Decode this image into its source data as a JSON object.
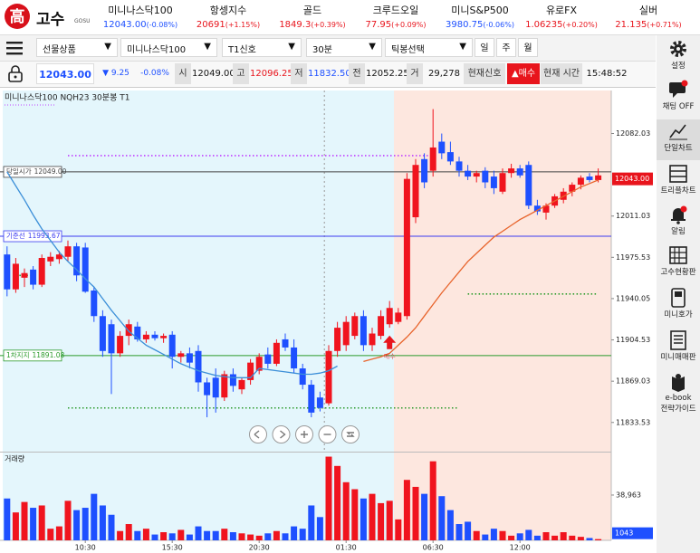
{
  "header": {
    "logo_mark": "高",
    "logo": "고수",
    "logo_sub": "GOSU",
    "tickers": [
      {
        "name": "미니나스닥100",
        "price": "12043.00",
        "change": "(-0.08%)"
      },
      {
        "name": "항셍지수",
        "price": "20691",
        "change": "(+1.15%)"
      },
      {
        "name": "골드",
        "price": "1849.3",
        "change": "(+0.39%)"
      },
      {
        "name": "크루드오일",
        "price": "77.95",
        "change": "(+0.09%)"
      },
      {
        "name": "미니S&P500",
        "price": "3980.75",
        "change": "(-0.06%)"
      },
      {
        "name": "유로FX",
        "price": "1.06235",
        "change": "(+0.20%)"
      },
      {
        "name": "실버",
        "price": "21.135",
        "change": "(+0.71%)"
      }
    ]
  },
  "toolbar": {
    "selects": [
      "선물상품",
      "미니나스닥100",
      "T1신호",
      "30분",
      "틱봉선택"
    ],
    "periods": [
      "일",
      "주",
      "월"
    ]
  },
  "quote": {
    "price": "12043.00",
    "change": "▼ 9.25",
    "rate": "-0.08%",
    "fields": [
      {
        "label": "시",
        "value": "12049.00",
        "color": "#111111"
      },
      {
        "label": "고",
        "value": "12096.25",
        "color": "#e8141c"
      },
      {
        "label": "저",
        "value": "11832.50",
        "color": "#1e50ff"
      },
      {
        "label": "전",
        "value": "12052.25",
        "color": "#111111"
      },
      {
        "label": "거",
        "value": "29,278",
        "color": "#111111"
      }
    ],
    "signal_label": "현재신호",
    "signal": "▲매수",
    "time_label": "현재 시간",
    "time": "15:48:52"
  },
  "sidebar": [
    {
      "lines": [
        "설정"
      ]
    },
    {
      "lines": [
        "채팅 OFF"
      ]
    },
    {
      "lines": [
        "단일차트"
      ]
    },
    {
      "lines": [
        "트리플차트"
      ]
    },
    {
      "lines": [
        "알림"
      ]
    },
    {
      "lines": [
        "고수현황판"
      ]
    },
    {
      "lines": [
        "미니호가"
      ]
    },
    {
      "lines": [
        "미니매매판"
      ]
    },
    {
      "lines": [
        "e-book",
        "전략가이드"
      ]
    }
  ],
  "chart_data": {
    "type": "candlestick",
    "title": "미니나스닥100  NQH23  30분봉  T1",
    "categories": [
      null,
      null,
      null,
      null,
      null,
      null,
      null,
      null,
      null,
      "10:30",
      null,
      null,
      null,
      null,
      null,
      null,
      null,
      null,
      null,
      "15:30",
      null,
      null,
      null,
      null,
      null,
      null,
      null,
      null,
      null,
      "20:30",
      null,
      null,
      null,
      null,
      null,
      null,
      null,
      null,
      null,
      "01:30",
      null,
      null,
      null,
      null,
      null,
      null,
      null,
      null,
      null,
      "06:30",
      null,
      null,
      null,
      null,
      null,
      null,
      null,
      null,
      null,
      "12:00",
      null,
      null,
      null,
      null,
      null,
      null,
      null,
      null,
      null
    ],
    "open": [
      11978,
      11948,
      11958,
      11965,
      11952,
      11972,
      11974,
      11976,
      11985,
      11984,
      11947,
      11925,
      11918,
      11893,
      11908,
      11916,
      11905,
      11909,
      11906,
      11909,
      11890,
      11893,
      11895,
      11868,
      11872,
      11855,
      11875,
      11862,
      11870,
      11878,
      11892,
      11884,
      11905,
      11898,
      11880,
      11866,
      11855,
      11850,
      11895,
      11900,
      11908,
      11925,
      11900,
      11908,
      11918,
      11920,
      11925,
      12010,
      12060,
      12050,
      12075,
      12066,
      12058,
      12050,
      12045,
      12050,
      12045,
      12032,
      12048,
      12052,
      12055,
      12020,
      12014,
      12020,
      12025,
      12032,
      12038,
      12045,
      12042
    ],
    "high": [
      11985,
      11975,
      11966,
      11968,
      11978,
      11980,
      11981,
      11990,
      11988,
      11988,
      11950,
      11930,
      11922,
      11912,
      11922,
      11920,
      11912,
      11912,
      11910,
      11912,
      11895,
      11898,
      11900,
      11872,
      11880,
      11878,
      11880,
      11872,
      11888,
      11893,
      11898,
      11905,
      11910,
      11905,
      11884,
      11870,
      11860,
      11900,
      11920,
      11925,
      11928,
      11930,
      11915,
      11930,
      11938,
      11932,
      12048,
      12060,
      12065,
      12103,
      12082,
      12075,
      12062,
      12055,
      12050,
      12053,
      12050,
      12052,
      12056,
      12055,
      12058,
      12025,
      12022,
      12030,
      12035,
      12040,
      12046,
      12048,
      12052
    ],
    "low": [
      11942,
      11945,
      11950,
      11948,
      11950,
      11968,
      11970,
      11972,
      11955,
      11945,
      11920,
      11890,
      11858,
      11890,
      11900,
      11903,
      11902,
      11904,
      11902,
      11880,
      11885,
      11880,
      11860,
      11838,
      11842,
      11852,
      11860,
      11858,
      11866,
      11875,
      11880,
      11882,
      11895,
      11876,
      11862,
      11838,
      11843,
      11848,
      11890,
      11895,
      11905,
      11895,
      11895,
      11905,
      11915,
      11918,
      11922,
      12005,
      12035,
      12045,
      12060,
      12055,
      12045,
      12042,
      12040,
      12035,
      12030,
      12030,
      12044,
      12044,
      12017,
      12012,
      12008,
      12018,
      12022,
      12028,
      12034,
      12040,
      12040
    ],
    "close": [
      11948,
      11970,
      11962,
      11952,
      11975,
      11976,
      11978,
      11985,
      11960,
      11946,
      11925,
      11895,
      11893,
      11908,
      11918,
      11905,
      11909,
      11906,
      11908,
      11890,
      11893,
      11885,
      11868,
      11857,
      11855,
      11875,
      11865,
      11870,
      11885,
      11890,
      11884,
      11902,
      11898,
      11880,
      11866,
      11842,
      11846,
      11895,
      11915,
      11920,
      11925,
      11900,
      11910,
      11925,
      11932,
      11928,
      12043,
      12055,
      12040,
      12070,
      12065,
      12058,
      12050,
      12045,
      12048,
      12040,
      12035,
      12048,
      12052,
      12046,
      12020,
      12015,
      12020,
      12028,
      12032,
      12038,
      12044,
      12042,
      12046
    ],
    "up_color": "#f0141e",
    "down_color": "#1e50ff",
    "ylim": [
      11810,
      12119
    ],
    "yticks": [
      12082.03,
      12011.03,
      11975.53,
      11940.05,
      11904.53,
      11869.03,
      11833.53
    ],
    "last_price": {
      "value": 12043,
      "label": "12043.00"
    },
    "series": [
      {
        "color": "#3c8fd8",
        "values": [
          12049,
          12037,
          12025,
          12012,
          12000,
          11990,
          11980,
          11972,
          11965,
          11957,
          11950,
          11940,
          11930,
          11921,
          11912,
          11906,
          11900,
          11896,
          11892,
          11888,
          11884,
          11881,
          11878,
          11876,
          11874,
          11873,
          11872,
          11872,
          11872,
          11880,
          11879,
          11878,
          11877,
          11876,
          11875,
          11875,
          11876,
          11878,
          11882,
          null,
          null,
          null,
          null,
          null,
          null,
          null,
          null,
          null,
          null,
          null,
          null,
          null,
          null,
          null,
          null,
          null,
          null,
          null,
          null,
          null,
          null,
          null,
          null,
          null,
          null,
          null,
          null,
          null,
          null
        ]
      },
      {
        "color": "#e8642c",
        "values": [
          null,
          null,
          null,
          null,
          null,
          null,
          null,
          null,
          null,
          null,
          null,
          null,
          null,
          null,
          null,
          null,
          null,
          null,
          null,
          null,
          null,
          null,
          null,
          null,
          null,
          null,
          null,
          null,
          null,
          null,
          null,
          null,
          null,
          null,
          null,
          null,
          null,
          null,
          null,
          null,
          null,
          11886,
          11888,
          11890,
          11893,
          11900,
          11907,
          11915,
          11925,
          11935,
          11945,
          11954,
          11963,
          11972,
          11979,
          11986,
          11993,
          11998,
          12003,
          12008,
          12012,
          12016,
          12020,
          12024,
          12028,
          12032,
          12036,
          12039,
          12042
        ]
      }
    ],
    "lines": [
      {
        "name": "당일시가",
        "value": 12049,
        "value_label": "12049.00",
        "color": "#444444"
      },
      {
        "name": "기준선",
        "value": 11993.67,
        "value_label": "11993.67",
        "color": "#3b3bf0"
      },
      {
        "name": "1차지지",
        "value": 11891.08,
        "value_label": "11891.08",
        "color": "#2a9a2a"
      }
    ],
    "levels": [
      {
        "value": 12063,
        "from": 7,
        "to": 49,
        "color": "#c040ff"
      },
      {
        "value": 11960,
        "from": 1,
        "to": 3,
        "color": "#2a9a2a"
      },
      {
        "value": 11944,
        "from": 53,
        "to": 68,
        "color": "#2a9a2a"
      },
      {
        "value": 11846,
        "from": 7,
        "to": 52,
        "color": "#2a9a2a"
      }
    ],
    "signals": [
      {
        "index": 44,
        "value": 11895,
        "label": "매수",
        "color": "#e8141c"
      }
    ],
    "volume": {
      "label": "거래량",
      "values": [
        36000,
        24000,
        33000,
        28000,
        30000,
        10000,
        12000,
        34000,
        26000,
        28000,
        40000,
        30000,
        22000,
        8000,
        14000,
        8000,
        10000,
        5000,
        7000,
        6000,
        9000,
        5000,
        12000,
        8000,
        8000,
        10000,
        7000,
        6000,
        5000,
        4000,
        6000,
        8000,
        6000,
        12000,
        10000,
        30000,
        20000,
        72000,
        64000,
        50000,
        44000,
        36000,
        40000,
        32000,
        34000,
        18000,
        52000,
        46000,
        40000,
        68000,
        38000,
        26000,
        14000,
        16000,
        8000,
        5000,
        10000,
        8000,
        4000,
        6000,
        9000,
        4000,
        7000,
        4000,
        7000,
        4000,
        3000,
        2000,
        1043
      ],
      "ylim": [
        0,
        73200
      ],
      "yticks": [
        {
          "value": 38963,
          "label": "38,963"
        }
      ]
    }
  }
}
